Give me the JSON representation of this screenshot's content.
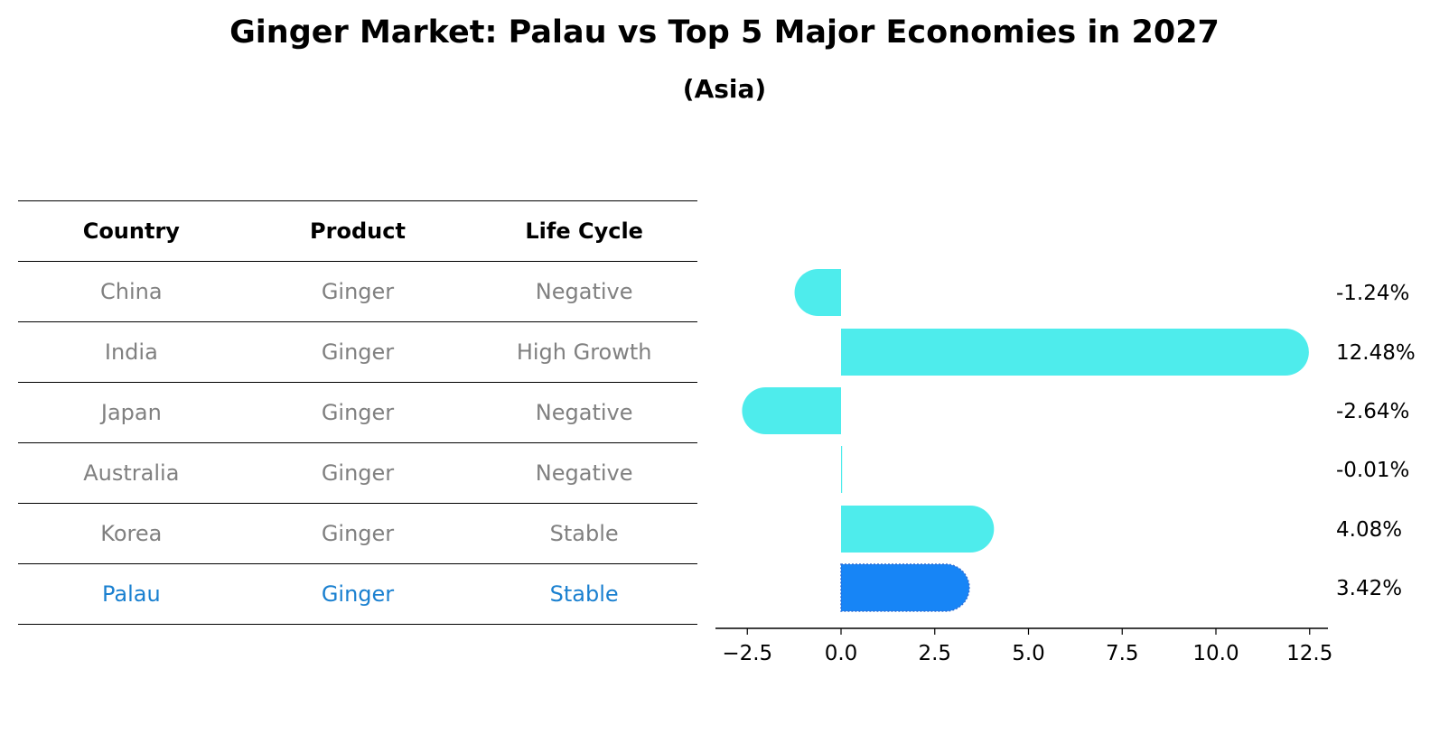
{
  "title": "Ginger Market: Palau vs Top 5 Major Economies in 2027",
  "subtitle": "(Asia)",
  "table": {
    "headers": [
      "Country",
      "Product",
      "Life Cycle"
    ],
    "rows": [
      {
        "country": "China",
        "product": "Ginger",
        "life_cycle": "Negative",
        "highlight": false
      },
      {
        "country": "India",
        "product": "Ginger",
        "life_cycle": "High Growth",
        "highlight": false
      },
      {
        "country": "Japan",
        "product": "Ginger",
        "life_cycle": "Negative",
        "highlight": false
      },
      {
        "country": "Australia",
        "product": "Ginger",
        "life_cycle": "Negative",
        "highlight": false
      },
      {
        "country": "Korea",
        "product": "Ginger",
        "life_cycle": "Stable",
        "highlight": false
      },
      {
        "country": "Palau",
        "product": "Ginger",
        "life_cycle": "Stable",
        "highlight": true
      }
    ]
  },
  "colors": {
    "bar": "#4EECEC",
    "highlight_bar": "#1785F6",
    "highlight_text": "#1A80D0",
    "muted_text": "#808080"
  },
  "chart_data": {
    "type": "bar",
    "orientation": "horizontal",
    "categories": [
      "China",
      "India",
      "Japan",
      "Australia",
      "Korea",
      "Palau"
    ],
    "values": [
      -1.24,
      12.48,
      -2.64,
      -0.01,
      4.08,
      3.42
    ],
    "value_labels": [
      "-1.24%",
      "12.48%",
      "-2.64%",
      "-0.01%",
      "4.08%",
      "3.42%"
    ],
    "highlight_index": 5,
    "xticks": [
      -2.5,
      0.0,
      2.5,
      5.0,
      7.5,
      10.0,
      12.5
    ],
    "xtick_labels": [
      "−2.5",
      "0.0",
      "2.5",
      "5.0",
      "7.5",
      "10.0",
      "12.5"
    ],
    "xlim": [
      -3.4,
      13.2
    ],
    "grid": false,
    "xlabel": "",
    "ylabel": ""
  }
}
